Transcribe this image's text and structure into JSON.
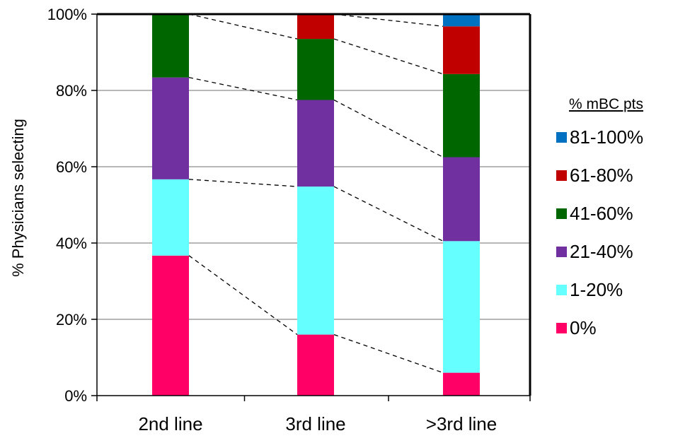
{
  "chart_data": {
    "type": "bar",
    "stacked": true,
    "normalized_percent": true,
    "categories": [
      "2nd line",
      "3rd line",
      ">3rd line"
    ],
    "ylabel": "% Physicians selecting",
    "ylim": [
      0,
      100
    ],
    "yticks": [
      "0%",
      "20%",
      "40%",
      "60%",
      "80%",
      "100%"
    ],
    "ytick_values": [
      0,
      20,
      40,
      60,
      80,
      100
    ],
    "grid": true,
    "connector_lines": "dashed",
    "legend": {
      "title": "% mBC pts",
      "placement": "right"
    },
    "series": [
      {
        "name": "0%",
        "color": "#FF0066",
        "values": [
          36.7,
          16.0,
          6.0
        ]
      },
      {
        "name": "1-20%",
        "color": "#66FFFF",
        "values": [
          20.0,
          38.8,
          34.5
        ]
      },
      {
        "name": "21-40%",
        "color": "#7030A0",
        "values": [
          26.7,
          22.7,
          22.0
        ]
      },
      {
        "name": "41-60%",
        "color": "#006600",
        "values": [
          16.6,
          16.0,
          21.8
        ]
      },
      {
        "name": "61-80%",
        "color": "#C00000",
        "values": [
          0.0,
          6.5,
          12.5
        ]
      },
      {
        "name": "81-100%",
        "color": "#0070C0",
        "values": [
          0.0,
          0.0,
          3.2
        ]
      }
    ]
  }
}
